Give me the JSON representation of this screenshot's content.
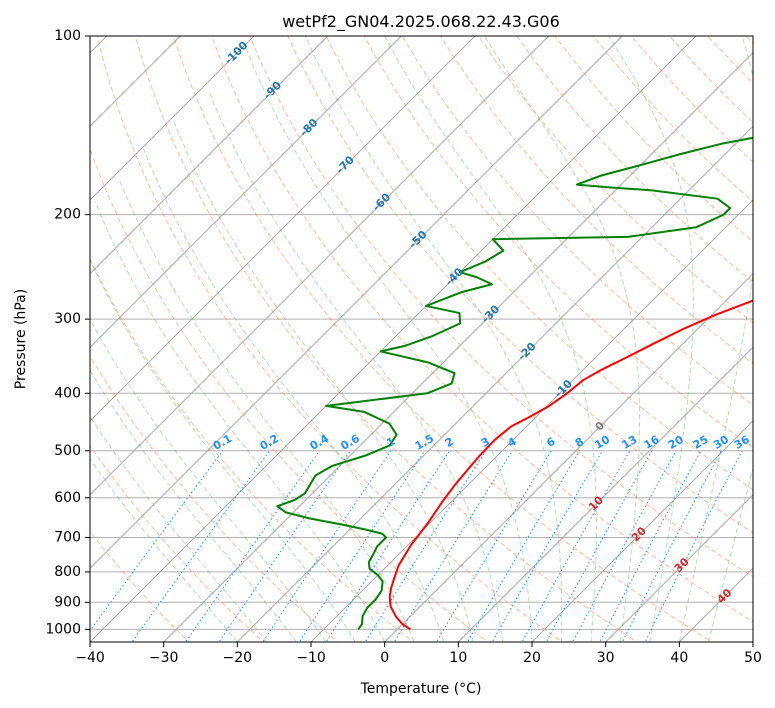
{
  "chart_data": {
    "type": "line",
    "chart_kind": "skew-t log-p",
    "title": "wetPf2_GN04.2025.068.22.43.G06",
    "xlabel": "Temperature (°C)",
    "ylabel": "Pressure (hPa)",
    "xlim": [
      -40,
      50
    ],
    "ylim": [
      1050,
      100
    ],
    "yscale": "log",
    "grid": true,
    "x_ticks": [
      -40,
      -30,
      -20,
      -10,
      0,
      10,
      20,
      30,
      40,
      50
    ],
    "x_tick_labels": [
      "−40",
      "−30",
      "−20",
      "−10",
      "0",
      "10",
      "20",
      "30",
      "40",
      "50"
    ],
    "y_ticks": [
      1000,
      900,
      800,
      700,
      600,
      500,
      400,
      300,
      200,
      100
    ],
    "y_tick_labels": [
      "1000",
      "900",
      "800",
      "700",
      "600",
      "500",
      "400",
      "300",
      "200",
      "100"
    ],
    "colors": {
      "temperature": "#ff0000",
      "dewpoint": "#008000",
      "dry_adiabat": "#ff7f50",
      "moist_adiabat": "#2ca02c",
      "mixing_ratio": "#1e90ff",
      "isotherm": "#808080",
      "isotherm_label": "#1f77b4",
      "hot_isotherm_label": "#d62728"
    },
    "series": [
      {
        "name": "",
        "role": "temperature",
        "points": [
          [
            1.8,
            1000
          ],
          [
            0,
            980
          ],
          [
            -2,
            950
          ],
          [
            -4,
            915
          ],
          [
            -5.5,
            880
          ],
          [
            -6.5,
            850
          ],
          [
            -7.5,
            815
          ],
          [
            -8.5,
            780
          ],
          [
            -9.6,
            720
          ],
          [
            -10.3,
            660
          ],
          [
            -11.2,
            610
          ],
          [
            -11.8,
            570
          ],
          [
            -12.1,
            540
          ],
          [
            -12.4,
            510
          ],
          [
            -12.5,
            480
          ],
          [
            -12.1,
            455
          ],
          [
            -11,
            440
          ],
          [
            -9.7,
            420
          ],
          [
            -9,
            400
          ],
          [
            -8.6,
            380
          ],
          [
            -7.5,
            365
          ],
          [
            -6,
            350
          ],
          [
            -4,
            330
          ],
          [
            -2,
            312
          ],
          [
            0.5,
            295
          ],
          [
            3.5,
            280
          ],
          [
            7,
            265
          ],
          [
            10.5,
            252
          ],
          [
            14,
            240
          ],
          [
            17,
            228
          ],
          [
            19.5,
            215
          ],
          [
            21.8,
            198
          ],
          [
            23.5,
            185
          ],
          [
            25.5,
            172
          ],
          [
            27.5,
            160
          ],
          [
            29.3,
            148
          ],
          [
            30.5,
            135
          ],
          [
            31.5,
            124
          ],
          [
            33,
            115
          ],
          [
            35.5,
            107
          ],
          [
            37.5,
            100
          ]
        ]
      },
      {
        "name": "",
        "role": "dewpoint",
        "points": [
          [
            -5.3,
            1000
          ],
          [
            -5.5,
            980
          ],
          [
            -6.5,
            950
          ],
          [
            -7,
            920
          ],
          [
            -7,
            890
          ],
          [
            -7.4,
            860
          ],
          [
            -8.5,
            830
          ],
          [
            -10,
            810
          ],
          [
            -12,
            790
          ],
          [
            -13,
            770
          ],
          [
            -13.5,
            745
          ],
          [
            -14,
            725
          ],
          [
            -14,
            700
          ],
          [
            -15,
            690
          ],
          [
            -17.5,
            680
          ],
          [
            -22,
            665
          ],
          [
            -27,
            650
          ],
          [
            -31,
            635
          ],
          [
            -33,
            620
          ],
          [
            -31.5,
            605
          ],
          [
            -31,
            590
          ],
          [
            -31.5,
            570
          ],
          [
            -32,
            550
          ],
          [
            -31,
            530
          ],
          [
            -28,
            510
          ],
          [
            -26,
            490
          ],
          [
            -26.5,
            470
          ],
          [
            -29,
            450
          ],
          [
            -34,
            430
          ],
          [
            -40,
            420
          ],
          [
            -37,
            415
          ],
          [
            -28,
            400
          ],
          [
            -26,
            385
          ],
          [
            -27,
            370
          ],
          [
            -32,
            355
          ],
          [
            -40,
            340
          ],
          [
            -37.5,
            333
          ],
          [
            -35,
            320
          ],
          [
            -33,
            305
          ],
          [
            -34.5,
            293
          ],
          [
            -40,
            285
          ],
          [
            -37,
            270
          ],
          [
            -34,
            262
          ],
          [
            -37,
            255
          ],
          [
            -40,
            250
          ],
          [
            -38,
            240
          ],
          [
            -37,
            230
          ],
          [
            -40,
            220
          ],
          [
            -22,
            218
          ],
          [
            -14,
            210
          ],
          [
            -13,
            205
          ],
          [
            -12,
            200
          ],
          [
            -12,
            195
          ],
          [
            -15,
            188
          ],
          [
            -25,
            182
          ],
          [
            -31,
            180
          ],
          [
            -36,
            178
          ],
          [
            -34,
            172
          ],
          [
            -30,
            165
          ],
          [
            -26,
            158
          ],
          [
            -22,
            152
          ],
          [
            -18,
            148
          ],
          [
            -12,
            146
          ],
          [
            -6.5,
            145
          ],
          [
            -4,
            140
          ],
          [
            -3,
            132
          ],
          [
            -2.5,
            125
          ],
          [
            -1.5,
            118
          ],
          [
            -0.5,
            113
          ],
          [
            0.5,
            108
          ],
          [
            1.5,
            103
          ],
          [
            2.5,
            100
          ]
        ]
      }
    ],
    "isotherm_labels": [
      {
        "t": -100,
        "text": "-100"
      },
      {
        "t": -90,
        "text": "-90"
      },
      {
        "t": -80,
        "text": "-80"
      },
      {
        "t": -70,
        "text": "-70"
      },
      {
        "t": -60,
        "text": "-60"
      },
      {
        "t": -50,
        "text": "-50"
      },
      {
        "t": -40,
        "text": "-40"
      },
      {
        "t": -30,
        "text": "-30"
      },
      {
        "t": -20,
        "text": "-20"
      },
      {
        "t": -10,
        "text": "-10"
      },
      {
        "t": 0,
        "text": "0"
      },
      {
        "t": 10,
        "text": "10"
      },
      {
        "t": 20,
        "text": "20"
      },
      {
        "t": 30,
        "text": "30"
      },
      {
        "t": 40,
        "text": "40"
      }
    ],
    "mixing_ratio_labels": [
      "0.1",
      "0.2",
      "0.4",
      "0.6",
      "1",
      "1.5",
      "2",
      "3",
      "4",
      "6",
      "8",
      "10",
      "13",
      "16",
      "20",
      "25",
      "30",
      "36"
    ],
    "mixing_ratios_gkg": [
      0.1,
      0.2,
      0.4,
      0.6,
      1,
      1.5,
      2,
      3,
      4,
      6,
      8,
      10,
      13,
      16,
      20,
      25,
      30,
      36
    ]
  }
}
